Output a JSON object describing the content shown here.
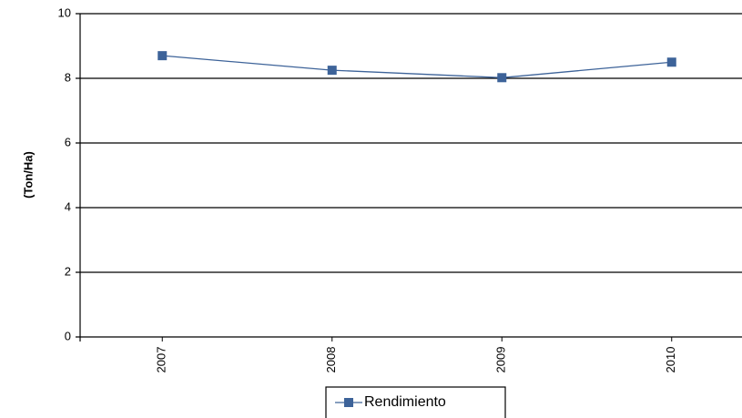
{
  "chart_data": {
    "type": "line",
    "y_label": "(Ton/Ha)",
    "categories": [
      "2007",
      "2008",
      "2009",
      "2010"
    ],
    "series": [
      {
        "name": "Rendimiento",
        "color": "#3d6399",
        "values": [
          8.7,
          8.25,
          8.02,
          8.5
        ]
      }
    ],
    "ylim": [
      0,
      10
    ],
    "yticks": [
      0,
      2,
      4,
      6,
      8,
      10
    ],
    "grid": true,
    "legend": "bottom"
  }
}
